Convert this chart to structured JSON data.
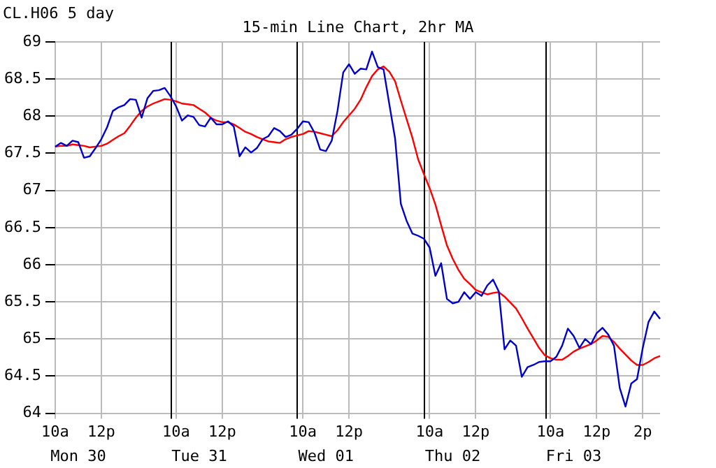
{
  "chart_data": {
    "type": "line",
    "title": "15-min Line Chart, 2hr MA",
    "subtitle": "CL.H06 5 day",
    "categories": [
      "10a",
      null,
      null,
      null,
      null,
      null,
      null,
      null,
      "12p",
      null,
      null,
      null,
      null,
      null,
      null,
      null,
      null,
      null,
      null,
      null,
      null,
      "10a",
      null,
      null,
      null,
      null,
      null,
      null,
      null,
      "12p",
      null,
      null,
      null,
      null,
      null,
      null,
      null,
      null,
      null,
      null,
      null,
      null,
      null,
      "10a",
      null,
      null,
      null,
      null,
      null,
      null,
      null,
      "12p",
      null,
      null,
      null,
      null,
      null,
      null,
      null,
      null,
      null,
      null,
      null,
      null,
      null,
      "10a",
      null,
      null,
      null,
      null,
      null,
      null,
      null,
      "12p",
      null,
      null,
      null,
      null,
      null,
      null,
      null,
      null,
      null,
      null,
      null,
      null,
      "10a",
      null,
      null,
      null,
      null,
      null,
      null,
      null,
      "12p",
      null,
      null,
      null,
      null,
      null,
      null,
      null,
      "2p",
      null,
      null,
      null
    ],
    "series": [
      {
        "color": "#0000cc",
        "values": [
          67.59,
          67.64,
          67.6,
          67.67,
          67.65,
          67.44,
          67.46,
          67.57,
          67.69,
          67.85,
          68.07,
          68.12,
          68.15,
          68.23,
          68.22,
          67.98,
          68.24,
          68.34,
          68.35,
          68.38,
          68.27,
          68.13,
          67.94,
          68.01,
          67.99,
          67.88,
          67.86,
          67.98,
          67.89,
          67.89,
          67.93,
          67.86,
          67.46,
          67.58,
          67.51,
          67.57,
          67.69,
          67.73,
          67.84,
          67.8,
          67.72,
          67.75,
          67.83,
          67.93,
          67.92,
          67.78,
          67.55,
          67.53,
          67.67,
          68.07,
          68.59,
          68.7,
          68.57,
          68.64,
          68.63,
          68.87,
          68.66,
          68.63,
          68.16,
          67.7,
          66.82,
          66.59,
          66.42,
          66.39,
          66.35,
          66.23,
          65.85,
          66.02,
          65.54,
          65.48,
          65.5,
          65.63,
          65.54,
          65.63,
          65.58,
          65.72,
          65.8,
          65.64,
          64.86,
          64.98,
          64.91,
          64.49,
          64.62,
          64.65,
          64.69,
          64.7,
          64.7,
          64.76,
          64.91,
          65.14,
          65.04,
          64.88,
          65.0,
          64.93,
          65.08,
          65.15,
          65.06,
          64.91,
          64.34,
          64.09,
          64.4,
          64.46,
          64.88,
          65.23,
          65.37,
          65.27
        ]
      },
      {
        "color": "#ff0000",
        "values": [
          67.59,
          67.6,
          67.6,
          67.62,
          67.61,
          67.6,
          67.58,
          67.59,
          67.6,
          67.63,
          67.68,
          67.73,
          67.77,
          67.87,
          67.98,
          68.07,
          68.13,
          68.17,
          68.2,
          68.23,
          68.22,
          68.2,
          68.17,
          68.16,
          68.15,
          68.1,
          68.05,
          67.98,
          67.94,
          67.92,
          67.92,
          67.89,
          67.84,
          67.79,
          67.76,
          67.72,
          67.69,
          67.66,
          67.65,
          67.64,
          67.69,
          67.72,
          67.74,
          67.76,
          67.8,
          67.79,
          67.77,
          67.75,
          67.73,
          67.81,
          67.92,
          68.01,
          68.1,
          68.22,
          68.39,
          68.54,
          68.63,
          68.67,
          68.6,
          68.47,
          68.21,
          67.96,
          67.71,
          67.42,
          67.22,
          67.03,
          66.81,
          66.53,
          66.26,
          66.08,
          65.93,
          65.81,
          65.74,
          65.66,
          65.63,
          65.6,
          65.62,
          65.63,
          65.57,
          65.49,
          65.41,
          65.28,
          65.14,
          65.01,
          64.88,
          64.78,
          64.74,
          64.72,
          64.72,
          64.77,
          64.83,
          64.87,
          64.9,
          64.93,
          64.98,
          65.04,
          65.03,
          64.96,
          64.87,
          64.79,
          64.71,
          64.65,
          64.65,
          64.69,
          64.74,
          64.77
        ]
      }
    ],
    "ylim": [
      64,
      69
    ],
    "yticks": [
      64,
      64.5,
      65,
      65.5,
      66,
      66.5,
      67,
      67.5,
      68,
      68.5,
      69
    ],
    "annotations": [
      "Mon 30",
      "Tue 31",
      "Wed 01",
      "Thu 02",
      "Fri 03"
    ],
    "grid": true,
    "marker": "none",
    "line_style": "solid",
    "legend": false
  }
}
